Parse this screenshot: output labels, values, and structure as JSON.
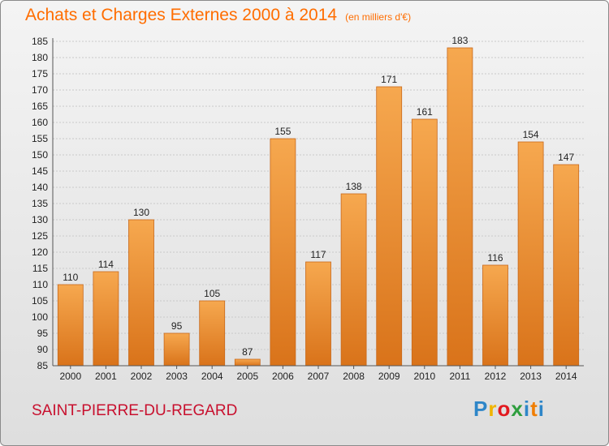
{
  "header": {
    "title": "Achats et Charges Externes 2000 à 2014",
    "unit": "(en milliers d'€)"
  },
  "footer": {
    "commune": "SAINT-PIERRE-DU-REGARD",
    "logo": "Proxiti"
  },
  "colors": {
    "bar_light": "#f6a84f",
    "bar_dark": "#d9731a",
    "title": "#ff6d00",
    "commune": "#c8102e"
  },
  "chart_data": {
    "type": "bar",
    "title": "Achats et Charges Externes 2000 à 2014",
    "subtitle": "(en milliers d'€)",
    "categories": [
      "2000",
      "2001",
      "2002",
      "2003",
      "2004",
      "2005",
      "2006",
      "2007",
      "2008",
      "2009",
      "2010",
      "2011",
      "2012",
      "2013",
      "2014"
    ],
    "values": [
      110,
      114,
      130,
      95,
      105,
      87,
      155,
      117,
      138,
      171,
      161,
      183,
      116,
      154,
      147
    ],
    "ylim": [
      85,
      185
    ],
    "yticks": [
      85,
      90,
      95,
      100,
      105,
      110,
      115,
      120,
      125,
      130,
      135,
      140,
      145,
      150,
      155,
      160,
      165,
      170,
      175,
      180,
      185
    ],
    "grid": true,
    "legend": "none"
  }
}
